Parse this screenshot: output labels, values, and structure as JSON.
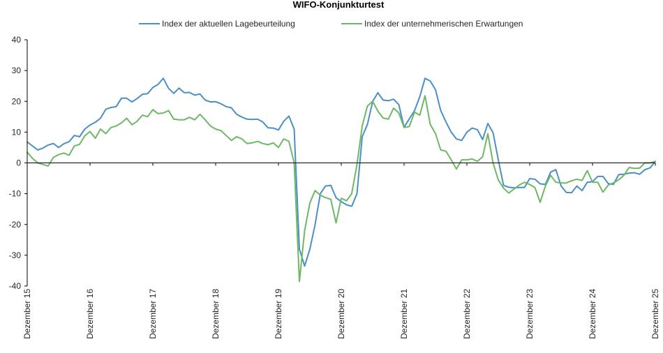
{
  "chart_data": {
    "type": "line",
    "title": "WIFO-Konjunkturtest",
    "xlabel": "",
    "ylabel": "",
    "ylim": [
      -40,
      40
    ],
    "yticks": [
      -40,
      -30,
      -20,
      -10,
      0,
      10,
      20,
      30,
      40
    ],
    "x_tick_labels": [
      "Dezember 15",
      "Dezember 16",
      "Dezember 17",
      "Dezember 18",
      "Dezember 19",
      "Dezember 20",
      "Dezember 21",
      "Dezember 22",
      "Dezember 23",
      "Dezember 24",
      "Dezember 25"
    ],
    "months_per_tick": 12,
    "grid": false,
    "legend_position": "top",
    "series": [
      {
        "name": "Index der aktuellen Lagebeurteilung",
        "color": "#4A8FC6",
        "values": [
          6.8,
          5.5,
          4.2,
          4.8,
          5.8,
          6.3,
          5.0,
          6.2,
          6.9,
          8.9,
          8.5,
          11.0,
          12.3,
          13.2,
          14.5,
          17.4,
          18.0,
          18.3,
          21.0,
          21.0,
          19.8,
          20.9,
          22.3,
          22.5,
          24.5,
          25.5,
          27.5,
          24.2,
          22.6,
          24.3,
          22.8,
          22.9,
          22.0,
          22.4,
          20.4,
          19.8,
          19.9,
          19.2,
          18.3,
          17.9,
          15.8,
          14.9,
          14.2,
          14.1,
          14.2,
          13.3,
          11.4,
          11.3,
          10.7,
          13.5,
          15.2,
          11.0,
          -28.0,
          -33.5,
          -28.0,
          -20.0,
          -10.0,
          -7.5,
          -7.3,
          -11.3,
          -12.6,
          -13.6,
          -14.1,
          -10.0,
          8.5,
          12.5,
          20.0,
          22.8,
          20.4,
          20.2,
          20.7,
          18.9,
          11.6,
          14.3,
          17.0,
          21.5,
          27.5,
          26.6,
          23.8,
          17.0,
          13.3,
          10.0,
          7.8,
          7.3,
          10.0,
          11.3,
          10.8,
          7.6,
          12.8,
          9.8,
          1.0,
          -7.3,
          -7.9,
          -8.1,
          -8.0,
          -8.0,
          -5.1,
          -5.3,
          -6.8,
          -7.0,
          -3.0,
          -2.2,
          -7.5,
          -9.6,
          -9.7,
          -7.5,
          -9.0,
          -6.3,
          -6.1,
          -4.4,
          -4.4,
          -6.7,
          -7.0,
          -3.8,
          -3.7,
          -3.3,
          -3.2,
          -3.7,
          -2.2,
          -1.6,
          0.5
        ]
      },
      {
        "name": "Index der unternehmerischen Erwartungen",
        "color": "#6DB865",
        "values": [
          3.5,
          1.5,
          0.0,
          -0.5,
          -1.0,
          1.8,
          2.7,
          3.2,
          2.5,
          5.5,
          6.0,
          8.8,
          10.2,
          8.0,
          11.0,
          9.5,
          11.5,
          12.0,
          13.0,
          14.5,
          12.4,
          13.5,
          15.5,
          15.0,
          17.3,
          16.0,
          16.2,
          17.0,
          14.2,
          14.0,
          14.0,
          14.8,
          14.0,
          15.8,
          14.0,
          12.0,
          11.0,
          10.5,
          8.9,
          7.3,
          8.5,
          7.8,
          6.3,
          6.5,
          7.0,
          6.3,
          5.9,
          6.5,
          5.0,
          7.8,
          7.0,
          0.0,
          -38.5,
          -22.0,
          -13.0,
          -9.0,
          -10.5,
          -11.3,
          -11.8,
          -19.5,
          -11.5,
          -12.3,
          -10.0,
          -0.5,
          12.0,
          18.5,
          20.0,
          16.8,
          14.6,
          14.2,
          17.8,
          16.2,
          11.5,
          11.8,
          16.5,
          15.5,
          21.8,
          12.5,
          9.5,
          4.2,
          3.8,
          1.0,
          -2.0,
          1.0,
          1.0,
          1.3,
          0.5,
          2.0,
          9.5,
          0.0,
          -5.5,
          -8.2,
          -9.8,
          -8.5,
          -7.2,
          -6.3,
          -7.0,
          -8.0,
          -12.8,
          -7.5,
          -4.0,
          -6.3,
          -6.5,
          -6.5,
          -5.8,
          -5.3,
          -5.7,
          -2.5,
          -6.3,
          -6.3,
          -9.5,
          -7.2,
          -6.5,
          -5.5,
          -4.0,
          -1.5,
          -1.8,
          -1.7,
          0.0,
          0.0,
          0.5
        ]
      }
    ]
  }
}
